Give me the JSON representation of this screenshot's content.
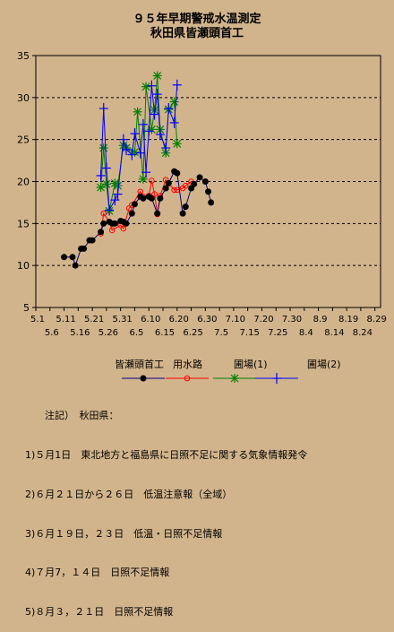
{
  "title_line1": "９５年早期警戒水温測定",
  "title_line2": "秋田県皆瀬頭首工",
  "chart_data": {
    "type": "line",
    "ylim": [
      5,
      35
    ],
    "yticks": [
      5,
      10,
      15,
      20,
      25,
      30,
      35
    ],
    "xlabels_top": [
      "5.1",
      "5.11",
      "5.21",
      "5.31",
      "6.10",
      "6.20",
      "6.30",
      "7.10",
      "7.20",
      "7.30",
      "8.9",
      "8.19",
      "8.29"
    ],
    "xlabels_bottom": [
      "5.6",
      "5.16",
      "5.26",
      "6.5",
      "6.15",
      "6.25",
      "7.5",
      "7.15",
      "7.25",
      "8.4",
      "8.14",
      "8.24"
    ],
    "grid": "horizontal dashed",
    "legend_position": "bottom",
    "series": [
      {
        "name": "皆瀬頭首工",
        "color": "#000080",
        "marker": "circle-filled",
        "points": [
          [
            10,
            11
          ],
          [
            13,
            11
          ],
          [
            14,
            10
          ],
          [
            16,
            12
          ],
          [
            17,
            12
          ],
          [
            19,
            13
          ],
          [
            20,
            13
          ],
          [
            23,
            14
          ],
          [
            24,
            15
          ],
          [
            26,
            15.2
          ],
          [
            27,
            15
          ],
          [
            28,
            15
          ],
          [
            30,
            15.3
          ],
          [
            31,
            15.2
          ],
          [
            32,
            15
          ],
          [
            34,
            16.2
          ],
          [
            35,
            17.3
          ],
          [
            37,
            18.2
          ],
          [
            38,
            18
          ],
          [
            40,
            18.2
          ],
          [
            41,
            18
          ],
          [
            43,
            16.2
          ],
          [
            44,
            18
          ],
          [
            46,
            19.2
          ],
          [
            47,
            19.8
          ],
          [
            49,
            21.2
          ],
          [
            50,
            21
          ],
          [
            52,
            16.2
          ],
          [
            53,
            17
          ],
          [
            55,
            19.2
          ],
          [
            56,
            19.7
          ],
          [
            58,
            20.5
          ],
          [
            60,
            20
          ],
          [
            61,
            18.8
          ],
          [
            62,
            17.5
          ]
        ]
      },
      {
        "name": "用水路",
        "color": "#ff0000",
        "marker": "circle-open",
        "points": [
          [
            23,
            13.8
          ],
          [
            24,
            16.2
          ],
          [
            26,
            15.2
          ],
          [
            27,
            14.2
          ],
          [
            30,
            14.8
          ],
          [
            31,
            14.4
          ],
          [
            33,
            16.8
          ],
          [
            34,
            17.2
          ],
          [
            37,
            18.8
          ],
          [
            38,
            18.2
          ],
          [
            40,
            18.3
          ],
          [
            41,
            20.1
          ],
          [
            42,
            18.5
          ],
          [
            43,
            16.1
          ],
          [
            44,
            18.3
          ],
          [
            46,
            20.2
          ],
          [
            47,
            19.8
          ],
          [
            49,
            19
          ],
          [
            50,
            19
          ],
          [
            52,
            19.2
          ],
          [
            53,
            19.5
          ],
          [
            55,
            20
          ],
          [
            56,
            19.7
          ]
        ]
      },
      {
        "name": "圃場(1)",
        "color": "#008000",
        "marker": "asterisk",
        "points": [
          [
            23,
            19.3
          ],
          [
            24,
            24
          ],
          [
            25,
            19.7
          ],
          [
            26,
            16.5
          ],
          [
            28,
            19.8
          ],
          [
            29,
            19.5
          ],
          [
            31,
            24.3
          ],
          [
            32,
            24
          ],
          [
            35,
            23.5
          ],
          [
            36,
            28.3
          ],
          [
            38,
            20.3
          ],
          [
            39,
            31.3
          ],
          [
            41,
            26.2
          ],
          [
            42,
            28.5
          ],
          [
            43,
            32.6
          ],
          [
            44,
            26.2
          ],
          [
            46,
            23.4
          ],
          [
            47,
            28.6
          ],
          [
            49,
            29.5
          ],
          [
            50,
            24.5
          ]
        ]
      },
      {
        "name": "圃場(2)",
        "color": "#0000ff",
        "marker": "plus",
        "points": [
          [
            23,
            20.7
          ],
          [
            24,
            28.7
          ],
          [
            25,
            21.6
          ],
          [
            26,
            16.6
          ],
          [
            28,
            17.8
          ],
          [
            29,
            18.5
          ],
          [
            31,
            25
          ],
          [
            32,
            23.8
          ],
          [
            34,
            23.2
          ],
          [
            35,
            25.7
          ],
          [
            37,
            23.4
          ],
          [
            38,
            26.8
          ],
          [
            39,
            21.1
          ],
          [
            40,
            26
          ],
          [
            41,
            31.4
          ],
          [
            42,
            28
          ],
          [
            43,
            30.4
          ],
          [
            44,
            25.6
          ],
          [
            46,
            24
          ],
          [
            47,
            28.7
          ],
          [
            49,
            27
          ],
          [
            50,
            31.5
          ]
        ]
      }
    ]
  },
  "notes": {
    "heading": "注記）　秋田県：",
    "lines": [
      "1)５月1日　東北地方と福島県に日照不足に関する気象情報発令",
      "2)６月２１日から２６日　低温注意報（全域）",
      "3)６月１９日，２３日　低温・日照不足情報",
      "4)７月7，１４日　日照不足情報",
      "5)８月３，２１日　日照不足情報"
    ]
  }
}
